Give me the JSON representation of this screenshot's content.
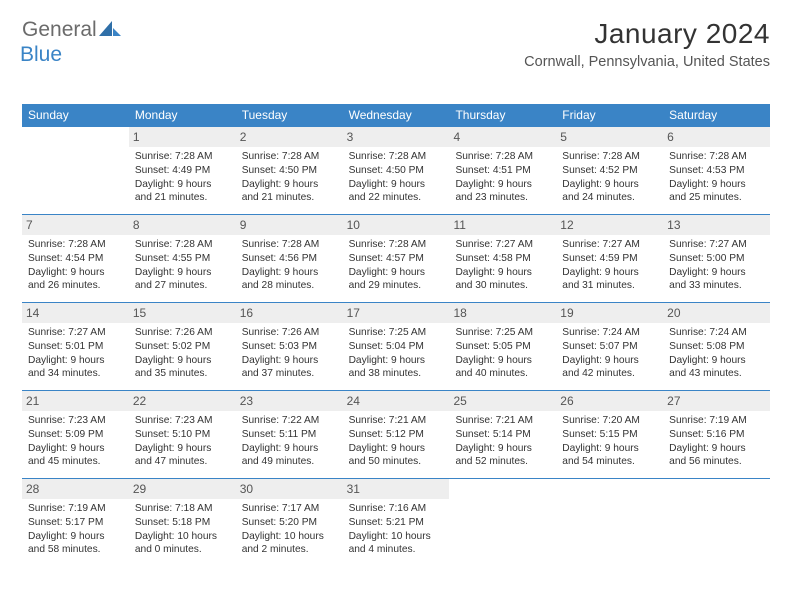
{
  "logo": {
    "part1": "General",
    "part2": "Blue"
  },
  "title": "January 2024",
  "location": "Cornwall, Pennsylvania, United States",
  "colors": {
    "accent": "#3a84c6",
    "day_bg": "#eeeeee",
    "text": "#333333",
    "muted": "#555555",
    "logo_gray": "#6b6b6b",
    "background": "#ffffff"
  },
  "day_headers": [
    "Sunday",
    "Monday",
    "Tuesday",
    "Wednesday",
    "Thursday",
    "Friday",
    "Saturday"
  ],
  "weeks": [
    [
      {
        "n": "",
        "sr": "",
        "ss": "",
        "dl": ""
      },
      {
        "n": "1",
        "sr": "Sunrise: 7:28 AM",
        "ss": "Sunset: 4:49 PM",
        "dl": "Daylight: 9 hours and 21 minutes."
      },
      {
        "n": "2",
        "sr": "Sunrise: 7:28 AM",
        "ss": "Sunset: 4:50 PM",
        "dl": "Daylight: 9 hours and 21 minutes."
      },
      {
        "n": "3",
        "sr": "Sunrise: 7:28 AM",
        "ss": "Sunset: 4:50 PM",
        "dl": "Daylight: 9 hours and 22 minutes."
      },
      {
        "n": "4",
        "sr": "Sunrise: 7:28 AM",
        "ss": "Sunset: 4:51 PM",
        "dl": "Daylight: 9 hours and 23 minutes."
      },
      {
        "n": "5",
        "sr": "Sunrise: 7:28 AM",
        "ss": "Sunset: 4:52 PM",
        "dl": "Daylight: 9 hours and 24 minutes."
      },
      {
        "n": "6",
        "sr": "Sunrise: 7:28 AM",
        "ss": "Sunset: 4:53 PM",
        "dl": "Daylight: 9 hours and 25 minutes."
      }
    ],
    [
      {
        "n": "7",
        "sr": "Sunrise: 7:28 AM",
        "ss": "Sunset: 4:54 PM",
        "dl": "Daylight: 9 hours and 26 minutes."
      },
      {
        "n": "8",
        "sr": "Sunrise: 7:28 AM",
        "ss": "Sunset: 4:55 PM",
        "dl": "Daylight: 9 hours and 27 minutes."
      },
      {
        "n": "9",
        "sr": "Sunrise: 7:28 AM",
        "ss": "Sunset: 4:56 PM",
        "dl": "Daylight: 9 hours and 28 minutes."
      },
      {
        "n": "10",
        "sr": "Sunrise: 7:28 AM",
        "ss": "Sunset: 4:57 PM",
        "dl": "Daylight: 9 hours and 29 minutes."
      },
      {
        "n": "11",
        "sr": "Sunrise: 7:27 AM",
        "ss": "Sunset: 4:58 PM",
        "dl": "Daylight: 9 hours and 30 minutes."
      },
      {
        "n": "12",
        "sr": "Sunrise: 7:27 AM",
        "ss": "Sunset: 4:59 PM",
        "dl": "Daylight: 9 hours and 31 minutes."
      },
      {
        "n": "13",
        "sr": "Sunrise: 7:27 AM",
        "ss": "Sunset: 5:00 PM",
        "dl": "Daylight: 9 hours and 33 minutes."
      }
    ],
    [
      {
        "n": "14",
        "sr": "Sunrise: 7:27 AM",
        "ss": "Sunset: 5:01 PM",
        "dl": "Daylight: 9 hours and 34 minutes."
      },
      {
        "n": "15",
        "sr": "Sunrise: 7:26 AM",
        "ss": "Sunset: 5:02 PM",
        "dl": "Daylight: 9 hours and 35 minutes."
      },
      {
        "n": "16",
        "sr": "Sunrise: 7:26 AM",
        "ss": "Sunset: 5:03 PM",
        "dl": "Daylight: 9 hours and 37 minutes."
      },
      {
        "n": "17",
        "sr": "Sunrise: 7:25 AM",
        "ss": "Sunset: 5:04 PM",
        "dl": "Daylight: 9 hours and 38 minutes."
      },
      {
        "n": "18",
        "sr": "Sunrise: 7:25 AM",
        "ss": "Sunset: 5:05 PM",
        "dl": "Daylight: 9 hours and 40 minutes."
      },
      {
        "n": "19",
        "sr": "Sunrise: 7:24 AM",
        "ss": "Sunset: 5:07 PM",
        "dl": "Daylight: 9 hours and 42 minutes."
      },
      {
        "n": "20",
        "sr": "Sunrise: 7:24 AM",
        "ss": "Sunset: 5:08 PM",
        "dl": "Daylight: 9 hours and 43 minutes."
      }
    ],
    [
      {
        "n": "21",
        "sr": "Sunrise: 7:23 AM",
        "ss": "Sunset: 5:09 PM",
        "dl": "Daylight: 9 hours and 45 minutes."
      },
      {
        "n": "22",
        "sr": "Sunrise: 7:23 AM",
        "ss": "Sunset: 5:10 PM",
        "dl": "Daylight: 9 hours and 47 minutes."
      },
      {
        "n": "23",
        "sr": "Sunrise: 7:22 AM",
        "ss": "Sunset: 5:11 PM",
        "dl": "Daylight: 9 hours and 49 minutes."
      },
      {
        "n": "24",
        "sr": "Sunrise: 7:21 AM",
        "ss": "Sunset: 5:12 PM",
        "dl": "Daylight: 9 hours and 50 minutes."
      },
      {
        "n": "25",
        "sr": "Sunrise: 7:21 AM",
        "ss": "Sunset: 5:14 PM",
        "dl": "Daylight: 9 hours and 52 minutes."
      },
      {
        "n": "26",
        "sr": "Sunrise: 7:20 AM",
        "ss": "Sunset: 5:15 PM",
        "dl": "Daylight: 9 hours and 54 minutes."
      },
      {
        "n": "27",
        "sr": "Sunrise: 7:19 AM",
        "ss": "Sunset: 5:16 PM",
        "dl": "Daylight: 9 hours and 56 minutes."
      }
    ],
    [
      {
        "n": "28",
        "sr": "Sunrise: 7:19 AM",
        "ss": "Sunset: 5:17 PM",
        "dl": "Daylight: 9 hours and 58 minutes."
      },
      {
        "n": "29",
        "sr": "Sunrise: 7:18 AM",
        "ss": "Sunset: 5:18 PM",
        "dl": "Daylight: 10 hours and 0 minutes."
      },
      {
        "n": "30",
        "sr": "Sunrise: 7:17 AM",
        "ss": "Sunset: 5:20 PM",
        "dl": "Daylight: 10 hours and 2 minutes."
      },
      {
        "n": "31",
        "sr": "Sunrise: 7:16 AM",
        "ss": "Sunset: 5:21 PM",
        "dl": "Daylight: 10 hours and 4 minutes."
      },
      {
        "n": "",
        "sr": "",
        "ss": "",
        "dl": ""
      },
      {
        "n": "",
        "sr": "",
        "ss": "",
        "dl": ""
      },
      {
        "n": "",
        "sr": "",
        "ss": "",
        "dl": ""
      }
    ]
  ]
}
